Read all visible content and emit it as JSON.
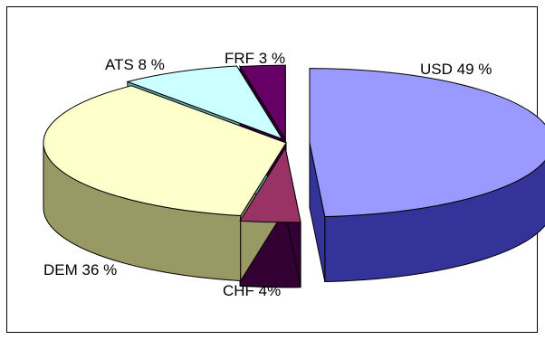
{
  "chart_data": {
    "type": "pie",
    "style": "3d-exploded",
    "title": "",
    "legend": "none",
    "slices": [
      {
        "category": "USD",
        "value": 49,
        "label": "USD 49 %",
        "top_color": "#9999ff",
        "side_color": "#333399"
      },
      {
        "category": "CHF",
        "value": 4,
        "label": "CHF 4%",
        "top_color": "#993366",
        "side_color": "#330033"
      },
      {
        "category": "DEM",
        "value": 36,
        "label": "DEM 36 %",
        "top_color": "#ffffcc",
        "side_color": "#999966"
      },
      {
        "category": "ATS",
        "value": 8,
        "label": "ATS 8 %",
        "top_color": "#ccffff",
        "side_color": "#66aaaa"
      },
      {
        "category": "FRF",
        "value": 3,
        "label": "FRF 3 %",
        "top_color": "#660066",
        "side_color": "#330033"
      }
    ],
    "exploded": [
      "USD",
      "CHF",
      "FRF",
      "ATS"
    ]
  }
}
